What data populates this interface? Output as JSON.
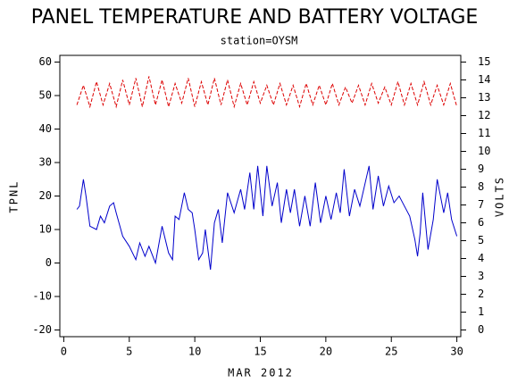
{
  "chart_data": {
    "type": "line",
    "title": "PANEL TEMPERATURE AND BATTERY VOLTAGE",
    "subtitle": "station=OYSM",
    "x_label": "MAR 2012",
    "y_label": "TPNL",
    "y2_label": "VOLTS",
    "xlim": [
      -0.3,
      30.3
    ],
    "xticks": [
      0,
      5,
      10,
      15,
      20,
      25,
      30
    ],
    "ylim": [
      -22,
      62
    ],
    "yticks": [
      -20,
      -10,
      0,
      10,
      20,
      30,
      40,
      50,
      60
    ],
    "y2lim": [
      -0.375,
      15.375
    ],
    "y2ticks": [
      0,
      1,
      2,
      3,
      4,
      5,
      6,
      7,
      8,
      9,
      10,
      11,
      12,
      13,
      14,
      15
    ],
    "series": [
      {
        "name": "TPNL",
        "color": "#0000cc",
        "axis": "y",
        "x": [
          1,
          1.2,
          1.5,
          1.7,
          2,
          2.5,
          2.8,
          3.1,
          3.5,
          3.8,
          4,
          4.5,
          5,
          5.5,
          5.8,
          6.2,
          6.5,
          7,
          7.5,
          8,
          8.3,
          8.5,
          8.8,
          9.2,
          9.5,
          9.8,
          10,
          10.3,
          10.6,
          10.8,
          11.2,
          11.5,
          11.8,
          12.1,
          12.5,
          13,
          13.5,
          13.8,
          14.2,
          14.5,
          14.8,
          15.2,
          15.5,
          15.9,
          16.3,
          16.6,
          17,
          17.3,
          17.6,
          18,
          18.4,
          18.8,
          19.2,
          19.6,
          20,
          20.4,
          20.8,
          21.1,
          21.4,
          21.8,
          22.2,
          22.6,
          23.3,
          23.6,
          24,
          24.4,
          24.8,
          25.2,
          25.6,
          26,
          26.4,
          26.8,
          27,
          27.2,
          27.4,
          27.8,
          28.2,
          28.5,
          29,
          29.3,
          29.6,
          30
        ],
        "values": [
          16,
          17,
          25,
          20,
          11,
          10,
          14,
          12,
          17,
          18,
          15,
          8,
          5,
          1,
          6,
          2,
          5,
          0,
          11,
          3,
          1,
          14,
          13,
          21,
          16,
          15,
          10,
          1,
          3,
          10,
          -2,
          12,
          16,
          6,
          21,
          15,
          22,
          16,
          27,
          16,
          29,
          14,
          29,
          17,
          24,
          12,
          22,
          15,
          22,
          11,
          20,
          11,
          24,
          12,
          20,
          13,
          21,
          15,
          28,
          14,
          22,
          17,
          29,
          16,
          26,
          17,
          23,
          18,
          20,
          17,
          14,
          7,
          2,
          9,
          21,
          4,
          13,
          25,
          15,
          21,
          13,
          8
        ]
      },
      {
        "name": "VOLTS",
        "color": "#dd0000",
        "axis": "y2",
        "x": [
          1,
          1.5,
          2,
          2.5,
          3,
          3.5,
          4,
          4.5,
          5,
          5.5,
          6,
          6.5,
          7,
          7.5,
          8,
          8.5,
          9,
          9.5,
          10,
          10.5,
          11,
          11.5,
          12,
          12.5,
          13,
          13.5,
          14,
          14.5,
          15,
          15.5,
          16,
          16.5,
          17,
          17.5,
          18,
          18.5,
          19,
          19.5,
          20,
          20.5,
          21,
          21.5,
          22,
          22.5,
          23,
          23.5,
          24,
          24.5,
          25,
          25.5,
          26,
          26.5,
          27,
          27.5,
          28,
          28.5,
          29,
          29.5,
          30
        ],
        "values": [
          12.6,
          13.7,
          12.5,
          13.9,
          12.6,
          13.8,
          12.5,
          14.0,
          12.6,
          14.1,
          12.5,
          14.2,
          12.6,
          14.0,
          12.5,
          13.8,
          12.7,
          14.1,
          12.5,
          13.9,
          12.6,
          14.1,
          12.6,
          14.0,
          12.5,
          13.8,
          12.6,
          13.9,
          12.7,
          13.7,
          12.6,
          13.8,
          12.6,
          13.7,
          12.5,
          13.8,
          12.6,
          13.7,
          12.6,
          13.8,
          12.6,
          13.6,
          12.7,
          13.7,
          12.6,
          13.8,
          12.7,
          13.6,
          12.6,
          13.9,
          12.6,
          13.8,
          12.6,
          13.9,
          12.6,
          13.7,
          12.6,
          13.8,
          12.5
        ]
      }
    ]
  }
}
